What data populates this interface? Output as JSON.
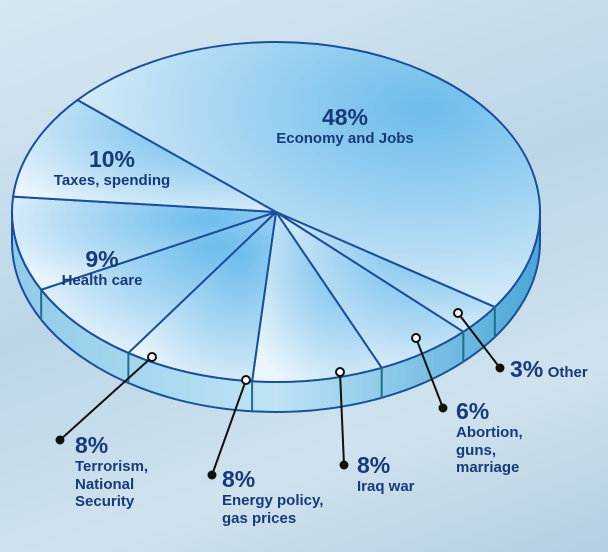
{
  "chart_data": {
    "type": "pie",
    "categories": [
      "Economy and Jobs",
      "Other",
      "Abortion, guns, marriage",
      "Iraq war",
      "Energy policy, gas prices",
      "Terrorism, National Security",
      "Health care",
      "Taxes, spending"
    ],
    "values": [
      48,
      3,
      6,
      8,
      8,
      8,
      9,
      10
    ],
    "value_labels": [
      "48%",
      "3%",
      "6%",
      "8%",
      "8%",
      "8%",
      "9%",
      "10%"
    ],
    "color": "#7cc4ee"
  }
}
